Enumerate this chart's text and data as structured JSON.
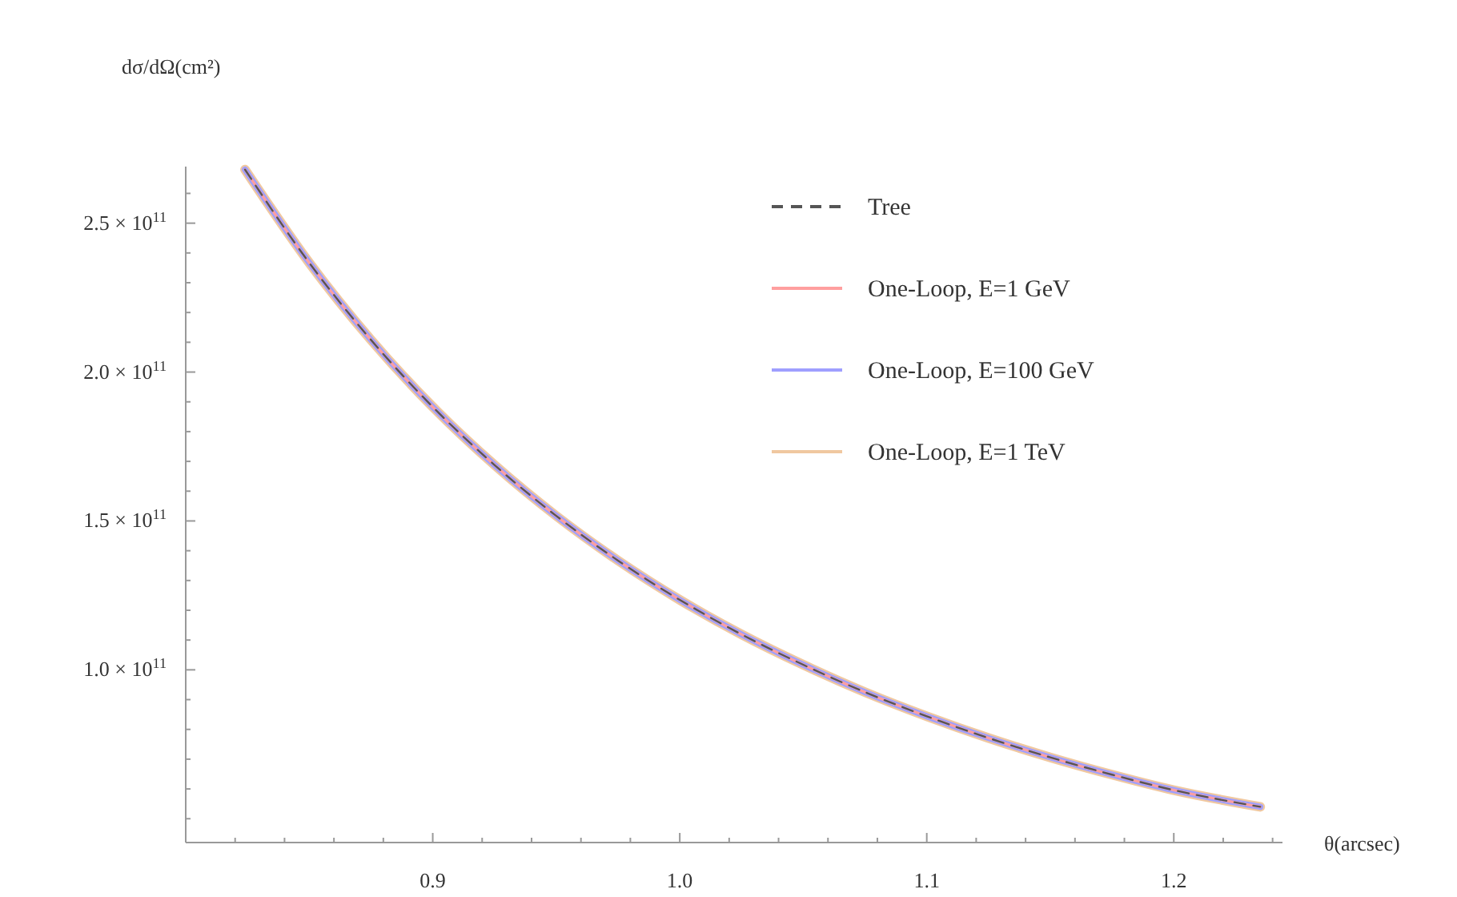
{
  "chart_data": {
    "type": "line",
    "xlabel": "θ(arcsec)",
    "ylabel": "dσ/dΩ(cm²)",
    "x": [
      0.824,
      0.85,
      0.875,
      0.9,
      0.925,
      0.95,
      0.975,
      1.0,
      1.025,
      1.05,
      1.075,
      1.1,
      1.125,
      1.15,
      1.175,
      1.2,
      1.235
    ],
    "series": [
      {
        "name": "Tree",
        "color": "#555555",
        "line_style": "dashed",
        "values": [
          268000000000.0,
          236700000000.0,
          210800000000.0,
          188300000000.0,
          168800000000.0,
          151700000000.0,
          136700000000.0,
          123500000000.0,
          111900000000.0,
          101700000000.0,
          92500000000.0,
          84400000000.0,
          77100000000.0,
          70600000000.0,
          64800000000.0,
          59600000000.0,
          54000000000.0
        ]
      },
      {
        "name": "One-Loop, E=1 GeV",
        "color": "#ff9f9f",
        "line_style": "solid",
        "values": [
          268000000000.0,
          236700000000.0,
          210800000000.0,
          188300000000.0,
          168800000000.0,
          151700000000.0,
          136700000000.0,
          123500000000.0,
          111900000000.0,
          101700000000.0,
          92500000000.0,
          84400000000.0,
          77100000000.0,
          70600000000.0,
          64800000000.0,
          59600000000.0,
          54000000000.0
        ]
      },
      {
        "name": "One-Loop, E=100 GeV",
        "color": "#9f9fff",
        "line_style": "solid",
        "values": [
          268000000000.0,
          236700000000.0,
          210800000000.0,
          188300000000.0,
          168800000000.0,
          151700000000.0,
          136700000000.0,
          123500000000.0,
          111900000000.0,
          101700000000.0,
          92500000000.0,
          84400000000.0,
          77100000000.0,
          70600000000.0,
          64800000000.0,
          59600000000.0,
          54000000000.0
        ]
      },
      {
        "name": "One-Loop, E=1 TeV",
        "color": "#f0c8a0",
        "line_style": "solid",
        "values": [
          268000000000.0,
          236700000000.0,
          210800000000.0,
          188300000000.0,
          168800000000.0,
          151700000000.0,
          136700000000.0,
          123500000000.0,
          111900000000.0,
          101700000000.0,
          92500000000.0,
          84400000000.0,
          77100000000.0,
          70600000000.0,
          64800000000.0,
          59600000000.0,
          54000000000.0
        ]
      }
    ],
    "xlim": [
      0.8,
      1.244
    ],
    "xticks": [
      {
        "value": 0.82,
        "label": null
      },
      {
        "value": 0.84,
        "label": null
      },
      {
        "value": 0.86,
        "label": null
      },
      {
        "value": 0.88,
        "label": null
      },
      0.9,
      {
        "value": 0.92,
        "label": null
      },
      {
        "value": 0.94,
        "label": null
      },
      {
        "value": 0.96,
        "label": null
      },
      {
        "value": 0.98,
        "label": null
      },
      {
        "value": 1.0,
        "label": "1.0"
      },
      {
        "value": 1.02,
        "label": null
      },
      {
        "value": 1.04,
        "label": null
      },
      {
        "value": 1.06,
        "label": null
      },
      {
        "value": 1.08,
        "label": null
      },
      1.1,
      {
        "value": 1.12,
        "label": null
      },
      {
        "value": 1.14,
        "label": null
      },
      {
        "value": 1.16,
        "label": null
      },
      {
        "value": 1.18,
        "label": null
      },
      1.2,
      {
        "value": 1.22,
        "label": null
      },
      {
        "value": 1.24,
        "label": null
      }
    ],
    "ylim": [
      42000000000.0,
      269000000000.0
    ],
    "yticks": [
      {
        "value": 50000000000.0,
        "label": null
      },
      {
        "value": 60000000000.0,
        "label": null
      },
      {
        "value": 70000000000.0,
        "label": null
      },
      {
        "value": 80000000000.0,
        "label": null
      },
      {
        "value": 90000000000.0,
        "label": null
      },
      {
        "value": 100000000000.0,
        "label": "1.0 × 10$^{11}$"
      },
      {
        "value": 110000000000.0,
        "label": null
      },
      {
        "value": 120000000000.0,
        "label": null
      },
      {
        "value": 130000000000.0,
        "label": null
      },
      {
        "value": 140000000000.0,
        "label": null
      },
      {
        "value": 150000000000.0,
        "label": "1.5 × 10$^{11}$"
      },
      {
        "value": 160000000000.0,
        "label": null
      },
      {
        "value": 170000000000.0,
        "label": null
      },
      {
        "value": 180000000000.0,
        "label": null
      },
      {
        "value": 190000000000.0,
        "label": null
      },
      {
        "value": 200000000000.0,
        "label": "2.0 × 10$^{11}$"
      },
      {
        "value": 210000000000.0,
        "label": null
      },
      {
        "value": 220000000000.0,
        "label": null
      },
      {
        "value": 230000000000.0,
        "label": null
      },
      {
        "value": 240000000000.0,
        "label": null
      },
      {
        "value": 250000000000.0,
        "label": "2.5 × 10$^{11}$"
      },
      {
        "value": 260000000000.0,
        "label": null
      }
    ],
    "grid": false,
    "legend": "top right"
  }
}
